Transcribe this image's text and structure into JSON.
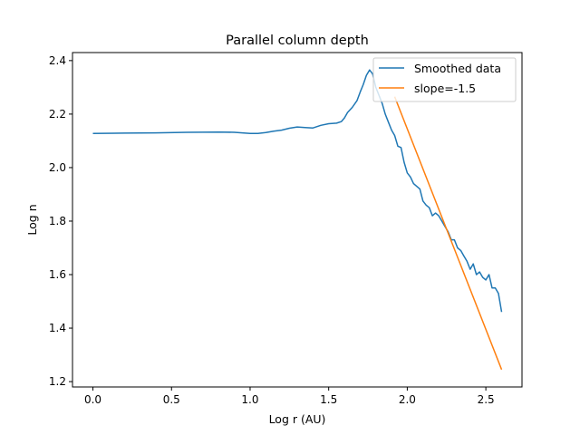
{
  "chart_data": {
    "type": "line",
    "title": "Parallel column depth",
    "xlabel": "Log r (AU)",
    "ylabel": "Log n",
    "xlim": [
      -0.13,
      2.73
    ],
    "ylim": [
      1.18,
      2.43
    ],
    "xticks": [
      0.0,
      0.5,
      1.0,
      1.5,
      2.0,
      2.5
    ],
    "xtick_labels": [
      "0.0",
      "0.5",
      "1.0",
      "1.5",
      "2.0",
      "2.5"
    ],
    "yticks": [
      1.2,
      1.4,
      1.6,
      1.8,
      2.0,
      2.2,
      2.4
    ],
    "ytick_labels": [
      "1.2",
      "1.4",
      "1.6",
      "1.8",
      "2.0",
      "2.2",
      "2.4"
    ],
    "grid": false,
    "legend_position": "upper right",
    "series": [
      {
        "name": "Smoothed data",
        "color": "#1f77b4",
        "x": [
          0.0,
          0.2,
          0.4,
          0.6,
          0.8,
          0.9,
          1.0,
          1.05,
          1.1,
          1.15,
          1.2,
          1.25,
          1.3,
          1.35,
          1.4,
          1.45,
          1.5,
          1.55,
          1.58,
          1.6,
          1.62,
          1.65,
          1.68,
          1.7,
          1.72,
          1.74,
          1.76,
          1.78,
          1.8,
          1.82,
          1.84,
          1.86,
          1.88,
          1.9,
          1.92,
          1.94,
          1.96,
          1.98,
          2.0,
          2.02,
          2.04,
          2.06,
          2.08,
          2.1,
          2.12,
          2.14,
          2.16,
          2.18,
          2.2,
          2.22,
          2.24,
          2.26,
          2.28,
          2.3,
          2.32,
          2.34,
          2.36,
          2.38,
          2.4,
          2.42,
          2.44,
          2.46,
          2.48,
          2.5,
          2.52,
          2.54,
          2.56,
          2.58,
          2.6
        ],
        "y": [
          2.128,
          2.129,
          2.13,
          2.132,
          2.133,
          2.132,
          2.128,
          2.128,
          2.131,
          2.136,
          2.14,
          2.147,
          2.152,
          2.15,
          2.148,
          2.158,
          2.164,
          2.166,
          2.172,
          2.185,
          2.206,
          2.225,
          2.25,
          2.282,
          2.31,
          2.345,
          2.365,
          2.35,
          2.3,
          2.27,
          2.24,
          2.2,
          2.17,
          2.14,
          2.12,
          2.08,
          2.075,
          2.02,
          1.98,
          1.965,
          1.94,
          1.93,
          1.92,
          1.875,
          1.86,
          1.85,
          1.82,
          1.83,
          1.82,
          1.8,
          1.78,
          1.76,
          1.73,
          1.73,
          1.7,
          1.69,
          1.67,
          1.65,
          1.62,
          1.64,
          1.6,
          1.61,
          1.59,
          1.58,
          1.6,
          1.55,
          1.55,
          1.53,
          1.46
        ]
      },
      {
        "name": "slope=-1.5",
        "color": "#ff7f0e",
        "x": [
          1.92,
          2.6
        ],
        "y": [
          2.265,
          1.245
        ]
      }
    ]
  }
}
